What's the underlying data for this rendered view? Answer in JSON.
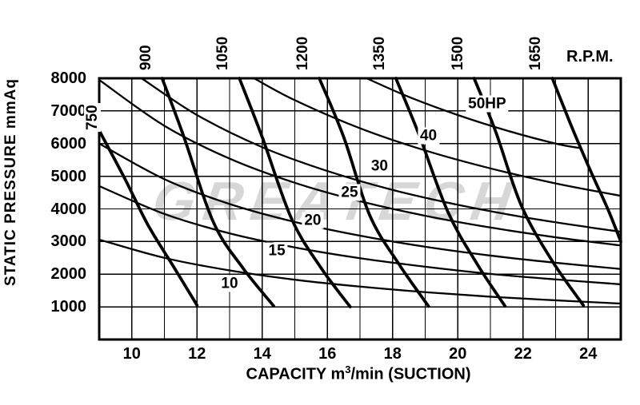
{
  "watermark": "GREATECH",
  "axes": {
    "y_title": "STATIC PRESSURE mmAq",
    "x_title_pre": "CAPACITY m",
    "x_title_sup": "3",
    "x_title_post": "/min (SUCTION)",
    "rpm_unit_label": "R.P.M."
  },
  "chart_data": {
    "type": "line",
    "title": "",
    "watermark": "GREATECH",
    "xlabel": "CAPACITY m3/min (SUCTION)",
    "ylabel": "STATIC PRESSURE mmAq",
    "xlim": [
      9,
      25
    ],
    "ylim": [
      0,
      8000
    ],
    "x_gridline_step": 1,
    "y_gridline_step": 1000,
    "grid": true,
    "legend_position": "none",
    "x_ticks": [
      "10",
      "12",
      "14",
      "16",
      "18",
      "20",
      "22",
      "24"
    ],
    "x_tick_values": [
      10,
      12,
      14,
      16,
      18,
      20,
      22,
      24
    ],
    "y_ticks": [
      "1000",
      "2000",
      "3000",
      "4000",
      "5000",
      "6000",
      "7000",
      "8000"
    ],
    "y_tick_values": [
      1000,
      2000,
      3000,
      4000,
      5000,
      6000,
      7000,
      8000
    ],
    "rpm_axis_label": "R.P.M.",
    "series": [
      {
        "group": "rpm",
        "name": "750 RPM",
        "label": "750",
        "label_placement": "inside",
        "label_at": [
          9.33,
          6830
        ],
        "points": [
          [
            9.0,
            6400
          ],
          [
            9.8,
            4900
          ],
          [
            10.5,
            3500
          ],
          [
            11.3,
            2200
          ],
          [
            12.0,
            1050
          ]
        ]
      },
      {
        "group": "rpm",
        "name": "900 RPM",
        "label": "900",
        "label_placement": "top",
        "points": [
          [
            10.93,
            8000
          ],
          [
            11.6,
            6200
          ],
          [
            12.5,
            3600
          ],
          [
            13.4,
            2200
          ],
          [
            14.35,
            1030
          ]
        ]
      },
      {
        "group": "rpm",
        "name": "1050 RPM",
        "label": "1050",
        "label_placement": "top",
        "points": [
          [
            13.3,
            8000
          ],
          [
            14.0,
            6200
          ],
          [
            14.9,
            3700
          ],
          [
            15.8,
            2200
          ],
          [
            16.7,
            1000
          ]
        ]
      },
      {
        "group": "rpm",
        "name": "1200 RPM",
        "label": "1200",
        "label_placement": "top",
        "points": [
          [
            15.75,
            8000
          ],
          [
            16.5,
            6200
          ],
          [
            17.3,
            3800
          ],
          [
            18.2,
            2300
          ],
          [
            19.1,
            1020
          ]
        ]
      },
      {
        "group": "rpm",
        "name": "1350 RPM",
        "label": "1350",
        "label_placement": "top",
        "points": [
          [
            18.1,
            8000
          ],
          [
            18.8,
            6300
          ],
          [
            19.7,
            3900
          ],
          [
            20.6,
            2300
          ],
          [
            21.45,
            1020
          ]
        ]
      },
      {
        "group": "rpm",
        "name": "1500 RPM",
        "label": "1500",
        "label_placement": "top",
        "points": [
          [
            20.5,
            8000
          ],
          [
            21.15,
            6400
          ],
          [
            21.95,
            4100
          ],
          [
            22.9,
            2400
          ],
          [
            23.85,
            1050
          ]
        ]
      },
      {
        "group": "rpm",
        "name": "1650 RPM",
        "label": "1650",
        "label_placement": "top",
        "points": [
          [
            22.9,
            8000
          ],
          [
            23.5,
            6500
          ],
          [
            24.1,
            5100
          ],
          [
            24.6,
            4000
          ],
          [
            25.0,
            3000
          ]
        ]
      },
      {
        "group": "hp",
        "name": "10 HP",
        "label": "10",
        "label_at": [
          13.0,
          1710
        ],
        "points": [
          [
            9,
            3060
          ],
          [
            11,
            2500
          ],
          [
            13,
            2115
          ],
          [
            15,
            1830
          ],
          [
            17,
            1620
          ],
          [
            19,
            1450
          ],
          [
            21,
            1310
          ],
          [
            23,
            1200
          ],
          [
            25,
            1100
          ]
        ]
      },
      {
        "group": "hp",
        "name": "15 HP",
        "label": "15",
        "label_at": [
          14.45,
          2715
        ],
        "points": [
          [
            9,
            4700
          ],
          [
            11,
            3845
          ],
          [
            13,
            3250
          ],
          [
            15,
            2820
          ],
          [
            17,
            2490
          ],
          [
            19,
            2230
          ],
          [
            21,
            2010
          ],
          [
            23,
            1840
          ],
          [
            25,
            1690
          ]
        ]
      },
      {
        "group": "hp",
        "name": "20 HP",
        "label": "20",
        "label_at": [
          15.55,
          3645
        ],
        "points": [
          [
            9,
            6000
          ],
          [
            11,
            4910
          ],
          [
            13,
            4150
          ],
          [
            15,
            3600
          ],
          [
            17,
            3180
          ],
          [
            19,
            2840
          ],
          [
            21,
            2570
          ],
          [
            23,
            2350
          ],
          [
            25,
            2160
          ]
        ]
      },
      {
        "group": "hp",
        "name": "25 HP",
        "label": "25",
        "label_at": [
          16.68,
          4500
        ],
        "points": [
          [
            9,
            7950
          ],
          [
            11,
            6545
          ],
          [
            13,
            5540
          ],
          [
            15,
            4800
          ],
          [
            17,
            4235
          ],
          [
            19,
            3790
          ],
          [
            21,
            3430
          ],
          [
            23,
            3130
          ],
          [
            25,
            2880
          ]
        ]
      },
      {
        "group": "hp",
        "name": "30 HP",
        "label": "30",
        "label_at": [
          17.6,
          5310
        ],
        "points": [
          [
            10.3,
            8000
          ],
          [
            12,
            6875
          ],
          [
            14,
            5890
          ],
          [
            16,
            5160
          ],
          [
            18,
            4580
          ],
          [
            20,
            4125
          ],
          [
            22,
            3750
          ],
          [
            24,
            3440
          ],
          [
            25,
            3300
          ]
        ]
      },
      {
        "group": "hp",
        "name": "40 HP",
        "label": "40",
        "label_at": [
          19.1,
          6240
        ],
        "points": [
          [
            13.75,
            8000
          ],
          [
            15,
            7330
          ],
          [
            17,
            6470
          ],
          [
            19,
            5790
          ],
          [
            21,
            5240
          ],
          [
            23,
            4780
          ],
          [
            25,
            4400
          ]
        ]
      },
      {
        "group": "hp",
        "name": "50 HP",
        "label": "50HP",
        "label_at": [
          20.9,
          7220
        ],
        "points": [
          [
            17.2,
            8000
          ],
          [
            18.5,
            7430
          ],
          [
            20,
            6875
          ],
          [
            21.5,
            6400
          ],
          [
            23,
            6000
          ],
          [
            23.7,
            5870
          ]
        ]
      }
    ]
  }
}
